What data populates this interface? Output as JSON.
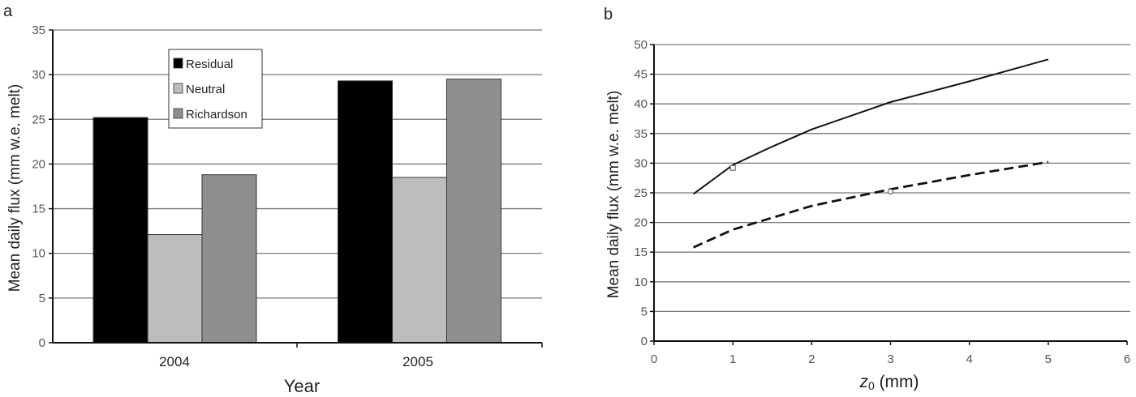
{
  "chart_data": [
    {
      "panel": "a",
      "type": "bar",
      "title": "",
      "xlabel": "Year",
      "ylabel": "Mean daily flux (mm w.e. melt)",
      "ylim": [
        0,
        35
      ],
      "yticks": [
        "0",
        "5",
        "10",
        "15",
        "20",
        "25",
        "30",
        "35"
      ],
      "categories": [
        "2004",
        "2005"
      ],
      "series": [
        {
          "name": "Residual",
          "color": "#000000",
          "values": [
            25.2,
            29.3
          ]
        },
        {
          "name": "Neutral",
          "color": "#bdbdbd",
          "values": [
            12.1,
            18.5
          ]
        },
        {
          "name": "Richardson",
          "color": "#8f8f8f",
          "values": [
            18.8,
            29.5
          ]
        }
      ],
      "legend": "top-left",
      "grid": true
    },
    {
      "panel": "b",
      "type": "line",
      "title": "",
      "xlabel_main": "z",
      "xlabel_sub": "0",
      "xlabel_unit": " (mm)",
      "ylabel": "Mean daily flux (mm w.e. melt)",
      "xlim": [
        0,
        6
      ],
      "ylim": [
        0,
        50
      ],
      "xticks": [
        "0",
        "1",
        "2",
        "3",
        "4",
        "5",
        "6"
      ],
      "yticks": [
        "0",
        "5",
        "10",
        "15",
        "20",
        "25",
        "30",
        "35",
        "40",
        "45",
        "50"
      ],
      "series": [
        {
          "name": "solid",
          "style": "solid",
          "x": [
            0.5,
            1,
            1.5,
            2,
            3,
            4,
            5
          ],
          "y": [
            24.8,
            29.7,
            32.8,
            35.7,
            40.3,
            43.8,
            47.5
          ]
        },
        {
          "name": "dashed",
          "style": "dashed",
          "x": [
            0.5,
            1,
            2,
            3,
            4,
            5
          ],
          "y": [
            15.8,
            18.8,
            22.8,
            25.6,
            28.0,
            30.2
          ]
        }
      ],
      "markers": [
        {
          "shape": "square",
          "x": 1,
          "y": 29.2
        },
        {
          "shape": "circle",
          "x": 3,
          "y": 25.2
        }
      ],
      "grid": true
    }
  ],
  "labels": {
    "panel_a": "a",
    "panel_b": "b"
  }
}
